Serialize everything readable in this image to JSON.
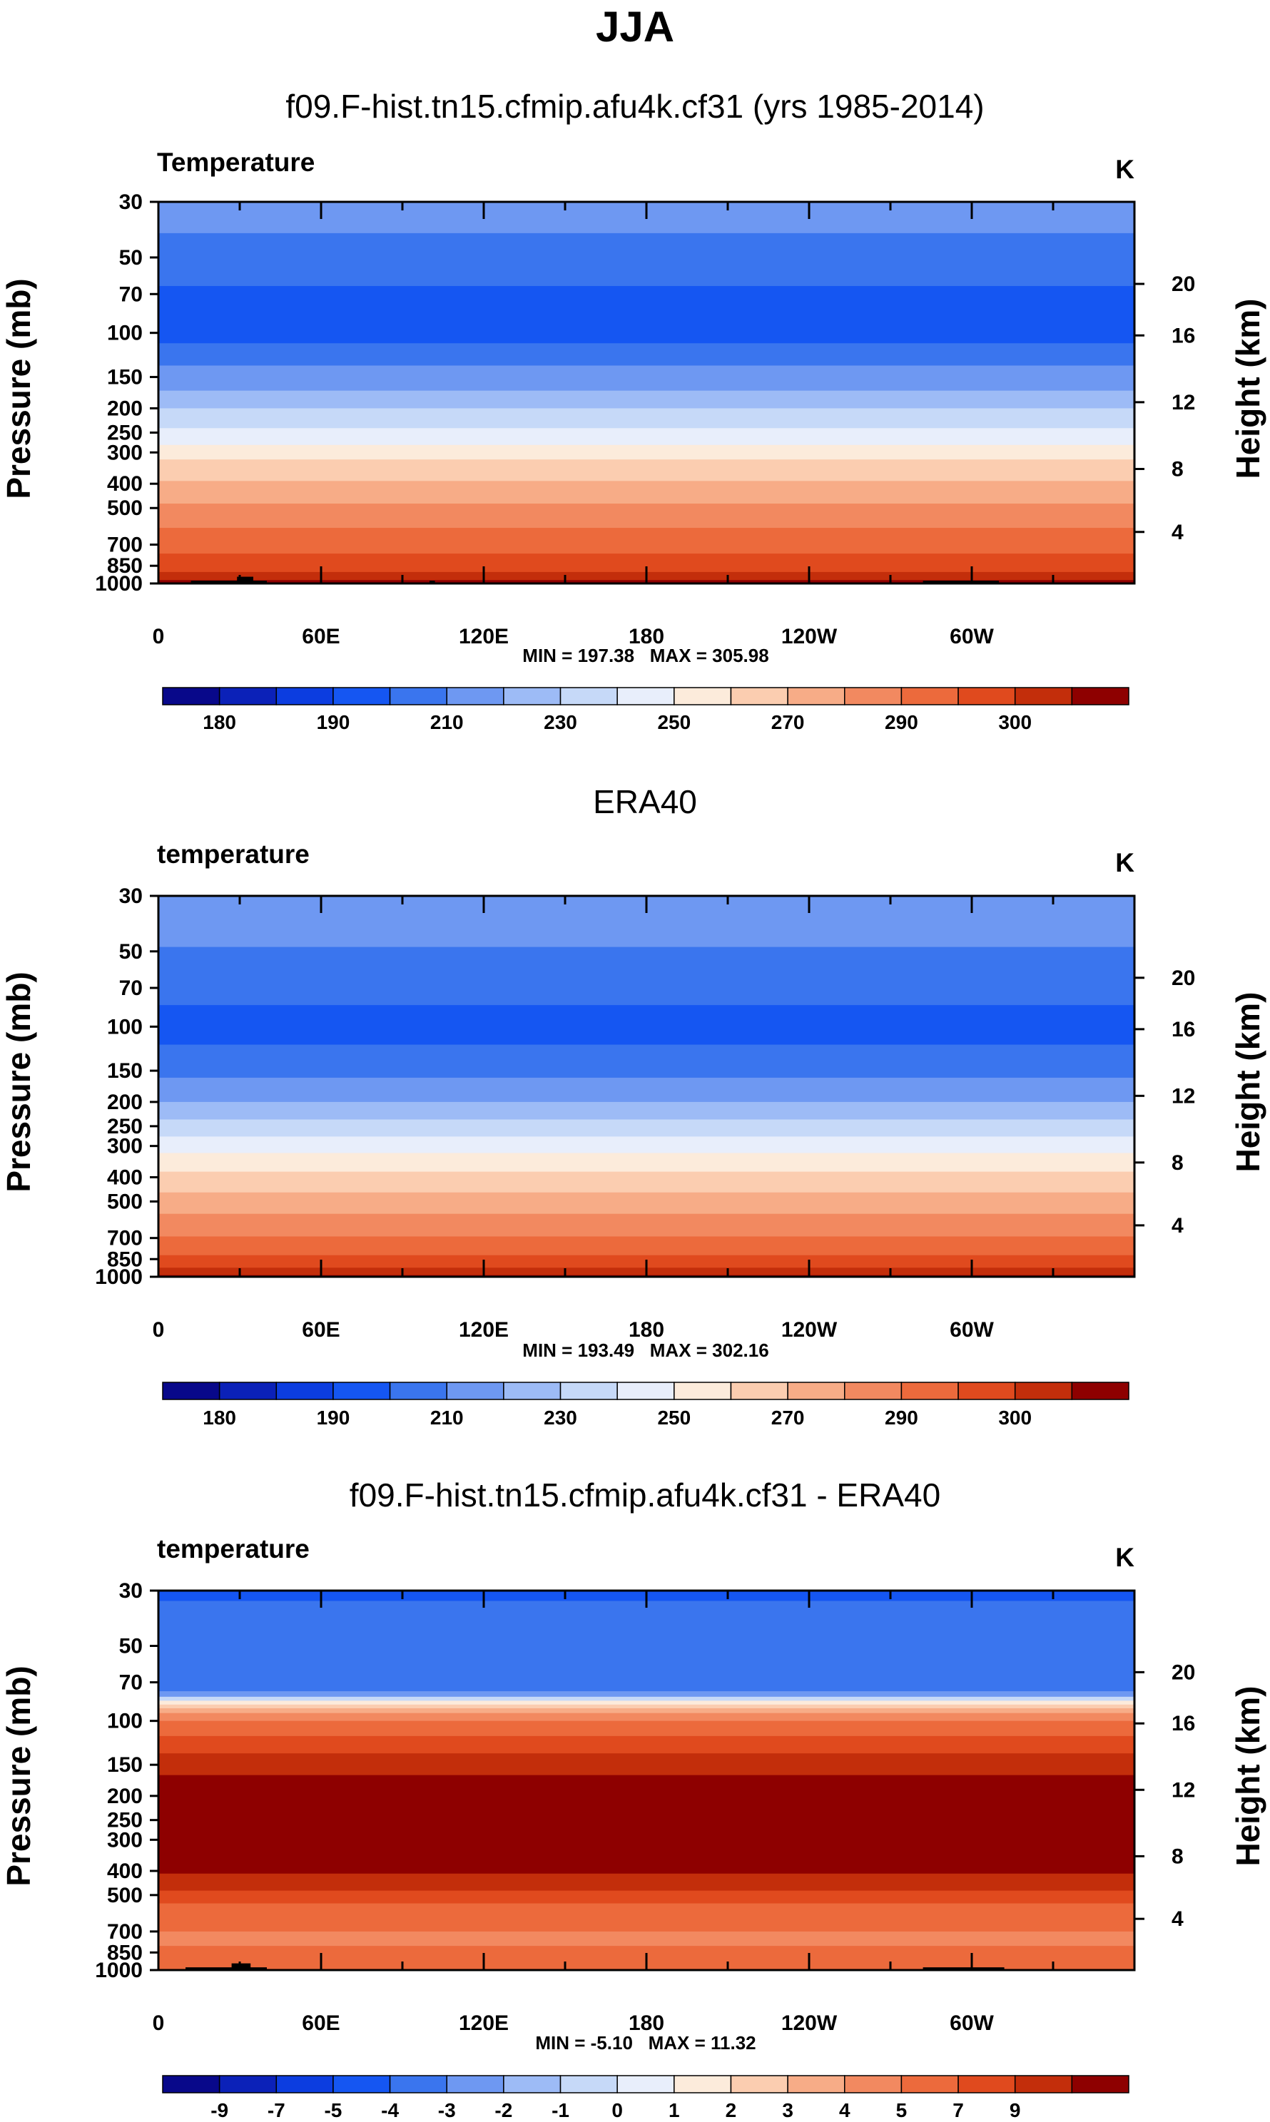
{
  "figure": {
    "title": "JJA"
  },
  "colors": {
    "temp_palette": [
      "#08088a",
      "#0b21b8",
      "#0c3de0",
      "#1556f2",
      "#3a75ee",
      "#6e98f2",
      "#9dbbf6",
      "#c6d9f8",
      "#e8eefb",
      "#fcebdb",
      "#fbcdb0",
      "#f7ac87",
      "#f28960",
      "#ec6a3c",
      "#e04a1e",
      "#c32e0b",
      "#8e0000"
    ],
    "diff_palette": [
      "#08088a",
      "#0b21b8",
      "#0c3de0",
      "#1556f2",
      "#3a75ee",
      "#6e98f2",
      "#9dbbf6",
      "#c6d9f8",
      "#e8eefb",
      "#fcebdb",
      "#fbcdb0",
      "#f7ac87",
      "#f28960",
      "#ec6a3c",
      "#e04a1e",
      "#c32e0b",
      "#8e0000"
    ]
  },
  "chart_data": [
    {
      "type": "heatmap",
      "subtitle": "f09.F-hist.tn15.cfmip.afu4k.cf31 (yrs 1985-2014)",
      "left_label": "Temperature",
      "units": "K",
      "ylabel": "Pressure (mb)",
      "y2label": "Height (km)",
      "y_ticks": [
        30,
        50,
        70,
        100,
        150,
        200,
        250,
        300,
        400,
        500,
        700,
        850,
        1000
      ],
      "ylim": [
        30,
        1000
      ],
      "y2_ticks": [
        20,
        16,
        12,
        8,
        4
      ],
      "x_ticks": [
        "0",
        "60E",
        "120E",
        "180",
        "120W",
        "60W"
      ],
      "x_tick_lon": [
        0,
        60,
        120,
        180,
        240,
        300
      ],
      "xlim": [
        0,
        360
      ],
      "minmax": "MIN = 197.38   MAX = 305.98",
      "colorbar_labels": [
        "180",
        "190",
        "210",
        "230",
        "250",
        "270",
        "290",
        "300"
      ],
      "colorbar_label_bins": [
        1,
        3,
        5,
        7,
        9,
        11,
        13,
        15
      ],
      "levels_by_pressure": [
        {
          "p": 30,
          "k": 5
        },
        {
          "p": 45,
          "k": 4
        },
        {
          "p": 70,
          "k": 3
        },
        {
          "p": 100,
          "k": 3
        },
        {
          "p": 120,
          "k": 4
        },
        {
          "p": 150,
          "k": 5
        },
        {
          "p": 180,
          "k": 6
        },
        {
          "p": 210,
          "k": 7
        },
        {
          "p": 250,
          "k": 8
        },
        {
          "p": 290,
          "k": 9
        },
        {
          "p": 340,
          "k": 10
        },
        {
          "p": 420,
          "k": 11
        },
        {
          "p": 520,
          "k": 12
        },
        {
          "p": 650,
          "k": 13
        },
        {
          "p": 800,
          "k": 14
        },
        {
          "p": 920,
          "k": 15
        },
        {
          "p": 1000,
          "k": 16
        }
      ],
      "band_boundaries": [
        {
          "p": 40,
          "k_above": 5,
          "k_below": 4
        },
        {
          "p": 65,
          "k_above": 4,
          "k_below": 3
        },
        {
          "p": 110,
          "k_above": 3,
          "k_below": 4
        },
        {
          "p": 135,
          "k_above": 4,
          "k_below": 5
        },
        {
          "p": 170,
          "k_above": 5,
          "k_below": 6
        },
        {
          "p": 200,
          "k_above": 6,
          "k_below": 7
        },
        {
          "p": 240,
          "k_above": 7,
          "k_below": 8
        },
        {
          "p": 280,
          "k_above": 8,
          "k_below": 9
        },
        {
          "p": 320,
          "k_above": 9,
          "k_below": 10
        },
        {
          "p": 390,
          "k_above": 10,
          "k_below": 11
        },
        {
          "p": 480,
          "k_above": 11,
          "k_below": 12
        },
        {
          "p": 600,
          "k_above": 12,
          "k_below": 13
        },
        {
          "p": 760,
          "k_above": 13,
          "k_below": 14
        },
        {
          "p": 900,
          "k_above": 14,
          "k_below": 15
        },
        {
          "p": 970,
          "k_above": 15,
          "k_below": 16
        }
      ],
      "surface_blocks": [
        {
          "lon0": 12,
          "lon1": 40,
          "p_top": 975
        },
        {
          "lon0": 29,
          "lon1": 35,
          "p_top": 940
        },
        {
          "lon0": 100,
          "lon1": 102,
          "p_top": 975
        },
        {
          "lon0": 282,
          "lon1": 310,
          "p_top": 975
        }
      ]
    },
    {
      "type": "heatmap",
      "subtitle": "ERA40",
      "left_label": "temperature",
      "units": "K",
      "ylabel": "Pressure (mb)",
      "y2label": "Height (km)",
      "y_ticks": [
        30,
        50,
        70,
        100,
        150,
        200,
        250,
        300,
        400,
        500,
        700,
        850,
        1000
      ],
      "ylim": [
        30,
        1000
      ],
      "y2_ticks": [
        20,
        16,
        12,
        8,
        4
      ],
      "x_ticks": [
        "0",
        "60E",
        "120E",
        "180",
        "120W",
        "60W"
      ],
      "x_tick_lon": [
        0,
        60,
        120,
        180,
        240,
        300
      ],
      "xlim": [
        0,
        360
      ],
      "minmax": "MIN = 193.49   MAX = 302.16",
      "colorbar_labels": [
        "180",
        "190",
        "210",
        "230",
        "250",
        "270",
        "290",
        "300"
      ],
      "colorbar_label_bins": [
        1,
        3,
        5,
        7,
        9,
        11,
        13,
        15
      ],
      "band_boundaries": [
        {
          "p": 48,
          "k_above": 5,
          "k_below": 4
        },
        {
          "p": 82,
          "k_above": 4,
          "k_below": 3
        },
        {
          "p": 118,
          "k_above": 3,
          "k_below": 4
        },
        {
          "p": 160,
          "k_above": 4,
          "k_below": 5
        },
        {
          "p": 200,
          "k_above": 5,
          "k_below": 6
        },
        {
          "p": 235,
          "k_above": 6,
          "k_below": 7
        },
        {
          "p": 275,
          "k_above": 7,
          "k_below": 8
        },
        {
          "p": 320,
          "k_above": 8,
          "k_below": 9
        },
        {
          "p": 380,
          "k_above": 9,
          "k_below": 10
        },
        {
          "p": 460,
          "k_above": 10,
          "k_below": 11
        },
        {
          "p": 560,
          "k_above": 11,
          "k_below": 12
        },
        {
          "p": 690,
          "k_above": 12,
          "k_below": 13
        },
        {
          "p": 820,
          "k_above": 13,
          "k_below": 14
        },
        {
          "p": 920,
          "k_above": 14,
          "k_below": 15
        },
        {
          "p": 985,
          "k_above": 15,
          "k_below": 16
        }
      ],
      "surface_blocks": []
    },
    {
      "type": "heatmap",
      "subtitle": "f09.F-hist.tn15.cfmip.afu4k.cf31 - ERA40",
      "left_label": "temperature",
      "units": "K",
      "ylabel": "Pressure (mb)",
      "y2label": "Height (km)",
      "y_ticks": [
        30,
        50,
        70,
        100,
        150,
        200,
        250,
        300,
        400,
        500,
        700,
        850,
        1000
      ],
      "ylim": [
        30,
        1000
      ],
      "y2_ticks": [
        20,
        16,
        12,
        8,
        4
      ],
      "x_ticks": [
        "0",
        "60E",
        "120E",
        "180",
        "120W",
        "60W"
      ],
      "x_tick_lon": [
        0,
        60,
        120,
        180,
        240,
        300
      ],
      "xlim": [
        0,
        360
      ],
      "minmax": "MIN = -5.10   MAX = 11.32",
      "colorbar_labels": [
        "-9",
        "-7",
        "-5",
        "-4",
        "-3",
        "-2",
        "-1",
        "0",
        "1",
        "2",
        "3",
        "4",
        "5",
        "7",
        "9"
      ],
      "colorbar_label_bins": [
        1,
        2,
        3,
        4,
        5,
        6,
        7,
        8,
        9,
        10,
        11,
        12,
        13,
        14,
        15
      ],
      "band_boundaries": [
        {
          "p": 33,
          "k_above": 3,
          "k_below": 4
        },
        {
          "p": 76,
          "k_above": 4,
          "k_below": 5
        },
        {
          "p": 80,
          "k_above": 5,
          "k_below": 7
        },
        {
          "p": 83,
          "k_above": 7,
          "k_below": 9
        },
        {
          "p": 86,
          "k_above": 9,
          "k_below": 10
        },
        {
          "p": 89,
          "k_above": 10,
          "k_below": 11
        },
        {
          "p": 93,
          "k_above": 11,
          "k_below": 12
        },
        {
          "p": 100,
          "k_above": 12,
          "k_below": 13
        },
        {
          "p": 115,
          "k_above": 13,
          "k_below": 14
        },
        {
          "p": 135,
          "k_above": 14,
          "k_below": 15
        },
        {
          "p": 165,
          "k_above": 15,
          "k_below": 16
        },
        {
          "p": 410,
          "k_above": 16,
          "k_below": 15
        },
        {
          "p": 480,
          "k_above": 15,
          "k_below": 14
        },
        {
          "p": 540,
          "k_above": 14,
          "k_below": 13
        },
        {
          "p": 700,
          "k_above": 13,
          "k_below": 12
        },
        {
          "p": 800,
          "k_above": 12,
          "k_below": 13
        }
      ],
      "surface_blocks": [
        {
          "lon0": 10,
          "lon1": 40,
          "p_top": 975
        },
        {
          "lon0": 27,
          "lon1": 34,
          "p_top": 940
        },
        {
          "lon0": 282,
          "lon1": 312,
          "p_top": 975
        }
      ]
    }
  ]
}
